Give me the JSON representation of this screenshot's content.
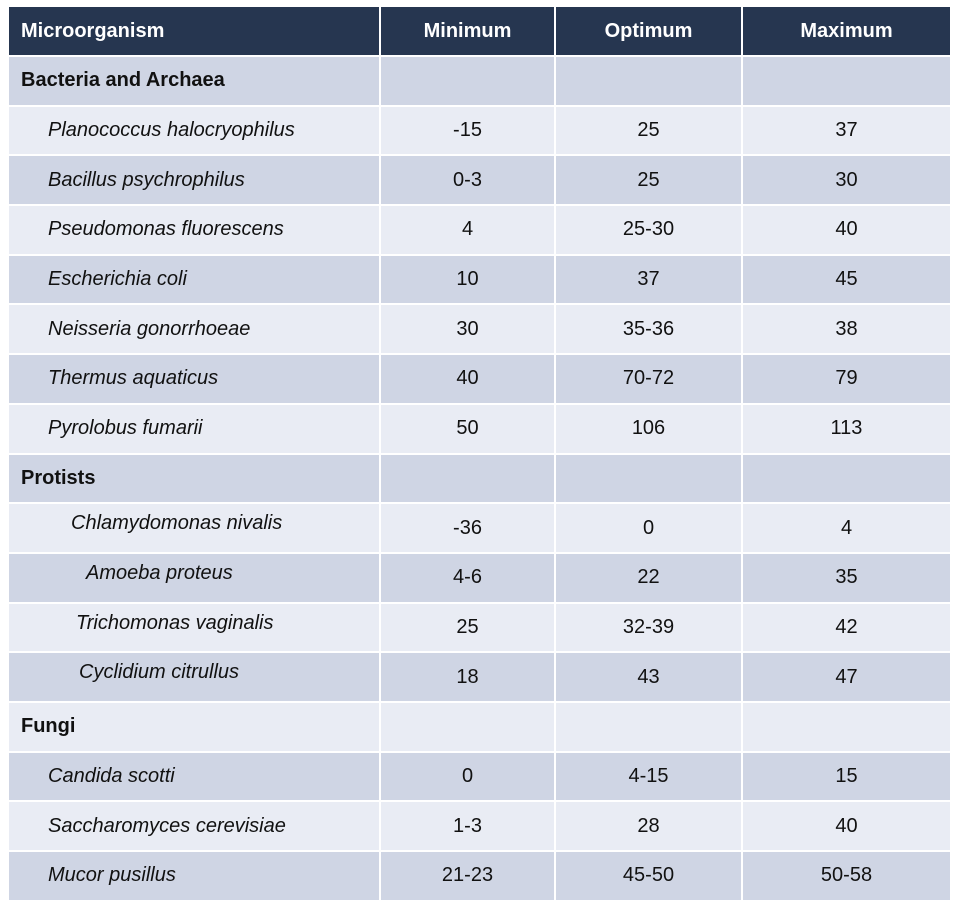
{
  "headers": [
    "Microorganism",
    "Minimum",
    "Optimum",
    "Maximum"
  ],
  "groups": [
    {
      "label": "Bacteria and Archaea",
      "rows": [
        {
          "name": "Planococcus halocryophilus",
          "min": "-15",
          "opt": "25",
          "max": "37"
        },
        {
          "name": "Bacillus psychrophilus",
          "min": "0-3",
          "opt": "25",
          "max": "30"
        },
        {
          "name": "Pseudomonas fluorescens",
          "min": "4",
          "opt": "25-30",
          "max": "40"
        },
        {
          "name": "Escherichia coli",
          "min": "10",
          "opt": "37",
          "max": "45"
        },
        {
          "name": "Neisseria gonorrhoeae",
          "min": "30",
          "opt": "35-36",
          "max": "38"
        },
        {
          "name": "Thermus aquaticus",
          "min": "40",
          "opt": "70-72",
          "max": "79"
        },
        {
          "name": "Pyrolobus fumarii",
          "min": "50",
          "opt": "106",
          "max": "113"
        }
      ]
    },
    {
      "label": "Protists",
      "rows": [
        {
          "name": "Chlamydomonas nivalis",
          "min": "-36",
          "opt": "0",
          "max": "4"
        },
        {
          "name": "Amoeba proteus",
          "min": "4-6",
          "opt": "22",
          "max": "35"
        },
        {
          "name": "Trichomonas vaginalis",
          "min": "25",
          "opt": "32-39",
          "max": "42"
        },
        {
          "name": "Cyclidium citrullus",
          "min": "18",
          "opt": "43",
          "max": "47"
        }
      ]
    },
    {
      "label": "Fungi",
      "rows": [
        {
          "name": "Candida scotti",
          "min": "0",
          "opt": "4-15",
          "max": "15"
        },
        {
          "name": "Saccharomyces cerevisiae",
          "min": "1-3",
          "opt": "28",
          "max": "40"
        },
        {
          "name": "Mucor pusillus",
          "min": "21-23",
          "opt": "45-50",
          "max": "50-58"
        }
      ]
    }
  ],
  "colors": {
    "header_bg": "#263650",
    "row_light": "#e9ecf4",
    "row_dark": "#cfd5e4"
  }
}
